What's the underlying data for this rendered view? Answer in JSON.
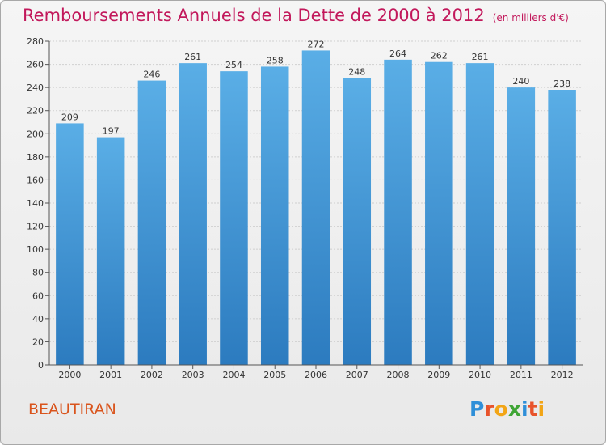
{
  "header": {
    "title": "Remboursements Annuels de la Dette de 2000 à 2012",
    "unit": "(en milliers d'€)"
  },
  "footer": {
    "commune": "BEAUTIRAN",
    "brand": "Proxiti"
  },
  "colors": {
    "title": "#c2185b",
    "commune": "#d9541c",
    "bar_top": "#5aaee6",
    "bar_bottom": "#2c7bbf"
  },
  "chart_data": {
    "type": "bar",
    "title": "Remboursements Annuels de la Dette de 2000 à 2012",
    "subtitle": "(en milliers d'€)",
    "xlabel": "",
    "ylabel": "",
    "categories": [
      "2000",
      "2001",
      "2002",
      "2003",
      "2004",
      "2005",
      "2006",
      "2007",
      "2008",
      "2009",
      "2010",
      "2011",
      "2012"
    ],
    "values": [
      209,
      197,
      246,
      261,
      254,
      258,
      272,
      248,
      264,
      262,
      261,
      240,
      238
    ],
    "ylim": [
      0,
      280
    ],
    "yticks": [
      0,
      20,
      40,
      60,
      80,
      100,
      120,
      140,
      160,
      180,
      200,
      220,
      240,
      260,
      280
    ],
    "grid": true,
    "legend": "none"
  }
}
